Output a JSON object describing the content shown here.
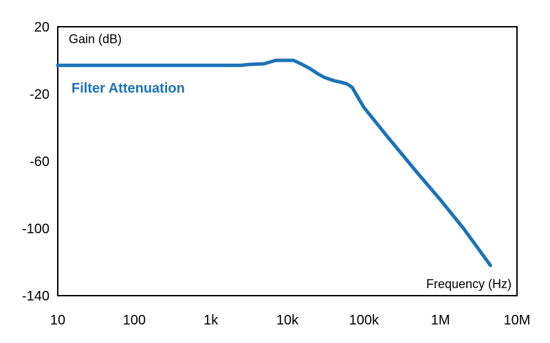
{
  "chart_data": {
    "type": "line",
    "title": "",
    "xlabel": "Frequency (Hz)",
    "ylabel": "Gain (dB)",
    "x_scale": "log",
    "xlim": [
      10,
      10000000
    ],
    "ylim": [
      -140,
      20
    ],
    "x_ticks": [
      10,
      100,
      1000,
      10000,
      100000,
      1000000,
      10000000
    ],
    "x_tick_labels": [
      "10",
      "100",
      "1k",
      "10k",
      "100k",
      "1M",
      "10M"
    ],
    "y_ticks": [
      20,
      -20,
      -60,
      -100,
      -140
    ],
    "y_tick_labels": [
      "20",
      "-20",
      "-60",
      "-100",
      "-140"
    ],
    "grid": false,
    "series": [
      {
        "name": "Filter Attenuation",
        "color": "#1a73b8",
        "x": [
          10,
          1000,
          2500,
          3000,
          5000,
          7000,
          8000,
          12000,
          15000,
          20000,
          25000,
          30000,
          40000,
          50000,
          60000,
          70000,
          100000,
          200000,
          500000,
          1000000,
          2000000,
          4500000
        ],
        "y": [
          -3,
          -3,
          -3,
          -2.5,
          -2,
          0,
          0,
          0,
          -2,
          -5,
          -8,
          -10,
          -12,
          -13,
          -14,
          -16,
          -28,
          -45,
          -67,
          -83,
          -100,
          -122
        ]
      }
    ]
  }
}
